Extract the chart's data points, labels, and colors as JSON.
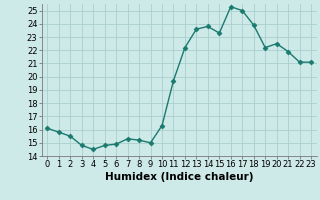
{
  "x": [
    0,
    1,
    2,
    3,
    4,
    5,
    6,
    7,
    8,
    9,
    10,
    11,
    12,
    13,
    14,
    15,
    16,
    17,
    18,
    19,
    20,
    21,
    22,
    23
  ],
  "y": [
    16.1,
    15.8,
    15.5,
    14.8,
    14.5,
    14.8,
    14.9,
    15.3,
    15.2,
    15.0,
    16.3,
    19.7,
    22.2,
    23.6,
    23.8,
    23.3,
    25.3,
    25.0,
    23.9,
    22.2,
    22.5,
    21.9,
    21.1,
    21.1
  ],
  "line_color": "#1a7a6e",
  "marker": "D",
  "marker_size": 2.5,
  "line_width": 1.0,
  "xlabel": "Humidex (Indice chaleur)",
  "xlim": [
    -0.5,
    23.5
  ],
  "ylim": [
    14,
    25.5
  ],
  "yticks": [
    14,
    15,
    16,
    17,
    18,
    19,
    20,
    21,
    22,
    23,
    24,
    25
  ],
  "xticks": [
    0,
    1,
    2,
    3,
    4,
    5,
    6,
    7,
    8,
    9,
    10,
    11,
    12,
    13,
    14,
    15,
    16,
    17,
    18,
    19,
    20,
    21,
    22,
    23
  ],
  "background_color": "#cde9e8",
  "grid_color": "#aacfce",
  "tick_fontsize": 6.0,
  "xlabel_fontsize": 7.5
}
